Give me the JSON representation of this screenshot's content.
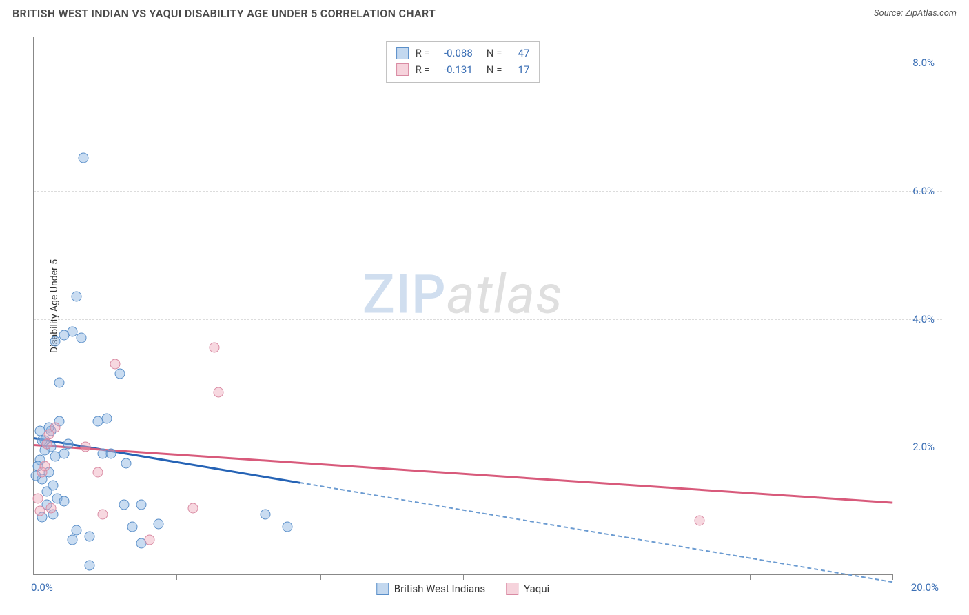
{
  "header": {
    "title": "BRITISH WEST INDIAN VS YAQUI DISABILITY AGE UNDER 5 CORRELATION CHART",
    "source": "Source: ZipAtlas.com"
  },
  "chart": {
    "type": "scatter",
    "y_axis_label": "Disability Age Under 5",
    "xlim": [
      0,
      20
    ],
    "ylim": [
      0,
      8.4
    ],
    "x_origin_label": "0.0%",
    "x_max_label": "20.0%",
    "y_ticks": [
      {
        "value": 2.0,
        "label": "2.0%"
      },
      {
        "value": 4.0,
        "label": "4.0%"
      },
      {
        "value": 6.0,
        "label": "6.0%"
      },
      {
        "value": 8.0,
        "label": "8.0%"
      }
    ],
    "x_tick_positions": [
      0,
      3.33,
      6.67,
      10,
      13.33,
      16.67,
      20
    ],
    "background_color": "#ffffff",
    "grid_color": "#dcdcdc",
    "axis_color": "#888888",
    "series": {
      "blue": {
        "label": "British West Indians",
        "fill_color": "rgba(135,178,223,0.45)",
        "stroke_color": "#5a8fc9",
        "trend_color": "#2563b5",
        "points": [
          [
            0.15,
            1.8
          ],
          [
            0.2,
            1.5
          ],
          [
            0.25,
            1.95
          ],
          [
            0.3,
            1.3
          ],
          [
            0.1,
            1.7
          ],
          [
            0.35,
            1.6
          ],
          [
            0.4,
            2.0
          ],
          [
            0.2,
            0.9
          ],
          [
            0.3,
            1.1
          ],
          [
            0.5,
            1.85
          ],
          [
            0.6,
            2.4
          ],
          [
            0.7,
            1.9
          ],
          [
            0.45,
            1.4
          ],
          [
            0.55,
            1.2
          ],
          [
            0.8,
            2.05
          ],
          [
            0.4,
            2.25
          ],
          [
            0.6,
            3.0
          ],
          [
            0.7,
            3.75
          ],
          [
            0.9,
            3.8
          ],
          [
            1.0,
            4.35
          ],
          [
            1.1,
            3.7
          ],
          [
            1.5,
            2.4
          ],
          [
            1.6,
            1.9
          ],
          [
            1.7,
            2.45
          ],
          [
            1.3,
            0.6
          ],
          [
            1.3,
            0.15
          ],
          [
            1.0,
            0.7
          ],
          [
            1.8,
            1.9
          ],
          [
            2.0,
            3.15
          ],
          [
            2.1,
            1.1
          ],
          [
            2.15,
            1.75
          ],
          [
            2.3,
            0.75
          ],
          [
            2.5,
            1.1
          ],
          [
            2.5,
            0.5
          ],
          [
            2.9,
            0.8
          ],
          [
            5.4,
            0.95
          ],
          [
            5.9,
            0.75
          ],
          [
            1.15,
            6.52
          ],
          [
            0.5,
            3.65
          ],
          [
            0.9,
            0.55
          ],
          [
            0.15,
            2.25
          ],
          [
            0.25,
            2.1
          ],
          [
            0.05,
            1.55
          ],
          [
            0.45,
            0.95
          ],
          [
            0.2,
            2.1
          ],
          [
            0.35,
            2.3
          ],
          [
            0.7,
            1.15
          ]
        ],
        "trend": {
          "y_at_x0": 2.15,
          "y_at_x20": -0.1,
          "solid_until_x": 6.2
        }
      },
      "pink": {
        "label": "Yaqui",
        "fill_color": "rgba(238,168,186,0.45)",
        "stroke_color": "#d98ba3",
        "trend_color": "#d85a7b",
        "points": [
          [
            0.1,
            1.2
          ],
          [
            0.2,
            1.6
          ],
          [
            0.15,
            1.0
          ],
          [
            0.3,
            2.05
          ],
          [
            0.25,
            1.7
          ],
          [
            0.35,
            2.2
          ],
          [
            0.4,
            1.05
          ],
          [
            0.5,
            2.3
          ],
          [
            1.2,
            2.0
          ],
          [
            1.5,
            1.6
          ],
          [
            1.6,
            0.95
          ],
          [
            1.9,
            3.3
          ],
          [
            2.7,
            0.55
          ],
          [
            3.7,
            1.05
          ],
          [
            4.2,
            3.55
          ],
          [
            4.3,
            2.85
          ],
          [
            15.5,
            0.85
          ]
        ],
        "trend": {
          "y_at_x0": 2.05,
          "y_at_x20": 1.15
        }
      }
    },
    "stats_box": {
      "rows": [
        {
          "swatch": "blue",
          "r_label": "R =",
          "r_value": "-0.088",
          "n_label": "N =",
          "n_value": "47"
        },
        {
          "swatch": "pink",
          "r_label": "R =",
          "r_value": "-0.131",
          "n_label": "N =",
          "n_value": "17"
        }
      ]
    },
    "bottom_legend": [
      {
        "swatch": "blue",
        "label": "British West Indians"
      },
      {
        "swatch": "pink",
        "label": "Yaqui"
      }
    ],
    "watermark": {
      "part1": "ZIP",
      "part2": "atlas"
    }
  }
}
